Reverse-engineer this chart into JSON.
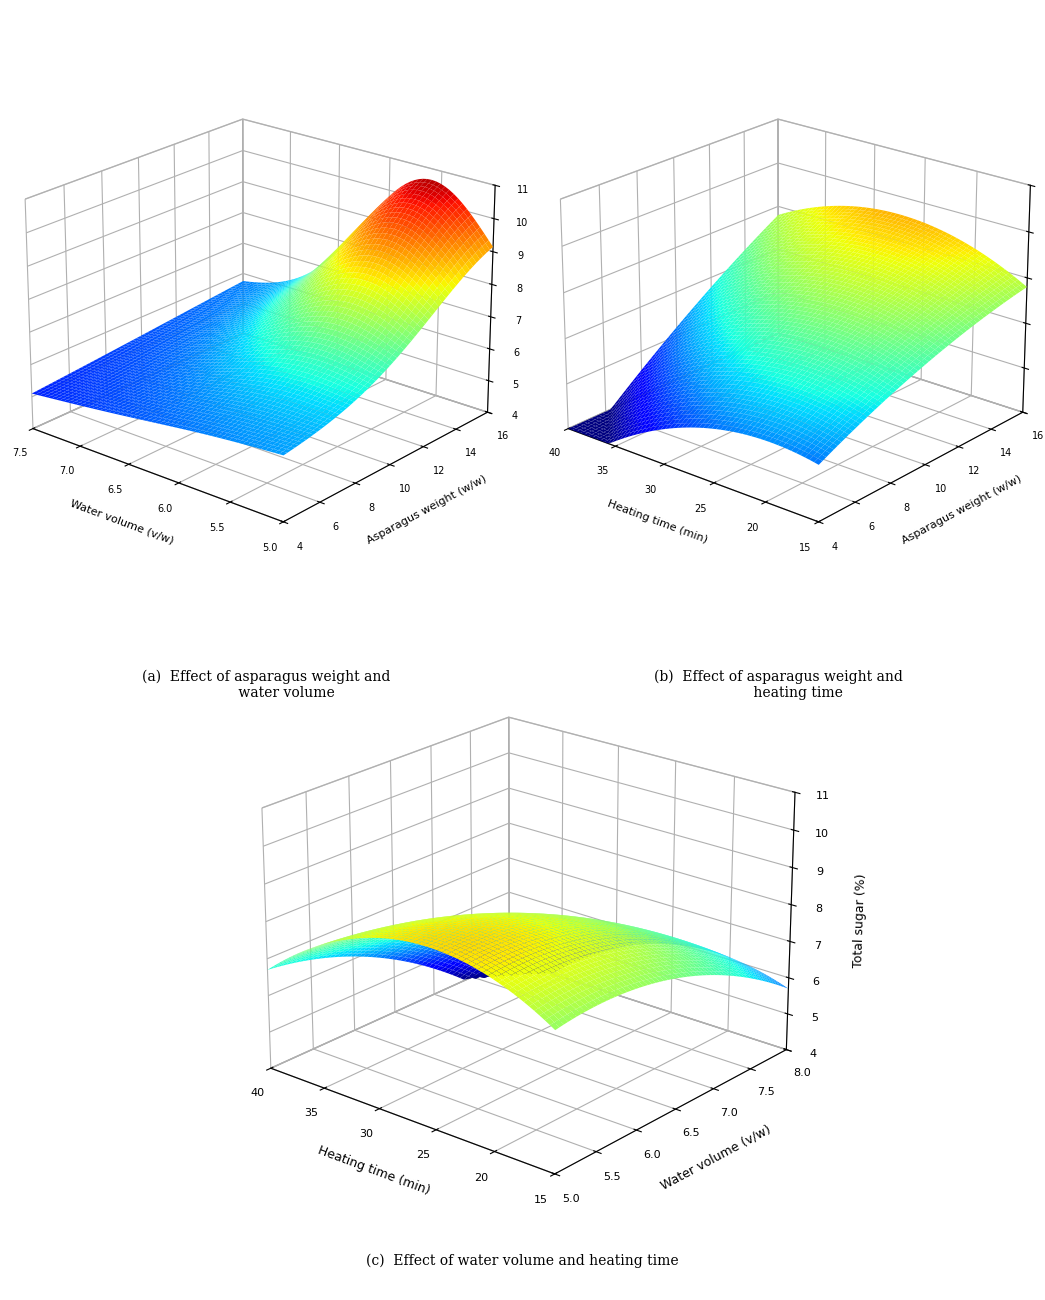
{
  "title_a": "(a)  Effect of asparagus weight and\n       water volume",
  "title_b": "(b)  Effect of asparagus weight and\n       heating time",
  "title_c": "(c)  Effect of water volume and heating time",
  "zlabel": "Total sugar (%)",
  "plot_a": {
    "xrange": [
      5.0,
      7.5
    ],
    "yrange": [
      4,
      16
    ],
    "zlim": [
      4,
      11
    ],
    "xlabel": "Water volume (v/w)",
    "ylabel": "Asparagus weight (w/w)",
    "xticks": [
      7.5,
      7.0,
      6.5,
      6.0,
      5.5,
      5.0
    ],
    "yticks": [
      4,
      6,
      8,
      10,
      12,
      14,
      16
    ],
    "zticks": [
      4,
      5,
      6,
      7,
      8,
      9,
      10,
      11
    ],
    "elev": 22,
    "azim": -50
  },
  "plot_b": {
    "xrange": [
      15,
      40
    ],
    "yrange": [
      4,
      16
    ],
    "zlim": [
      4,
      9
    ],
    "xlabel": "Heating time (min)",
    "ylabel": "Asparagus weight (w/w)",
    "xticks": [
      40,
      35,
      30,
      25,
      20,
      15
    ],
    "yticks": [
      4,
      6,
      8,
      10,
      12,
      14,
      16
    ],
    "zticks": [
      4,
      5,
      6,
      7,
      8,
      9
    ],
    "elev": 22,
    "azim": -50
  },
  "plot_c": {
    "xrange": [
      15,
      40
    ],
    "yrange": [
      5.0,
      8.0
    ],
    "zlim": [
      4,
      11
    ],
    "xlabel": "Heating time (min)",
    "ylabel": "Water volume (v/w)",
    "xticks": [
      40,
      35,
      30,
      25,
      20,
      15
    ],
    "yticks": [
      5.0,
      5.5,
      6.0,
      6.5,
      7.0,
      7.5,
      8.0
    ],
    "zticks": [
      4,
      5,
      6,
      7,
      8,
      9,
      10,
      11
    ],
    "elev": 22,
    "azim": -50
  },
  "background_color": "#ffffff",
  "colormap": "jet",
  "n_grid": 60
}
